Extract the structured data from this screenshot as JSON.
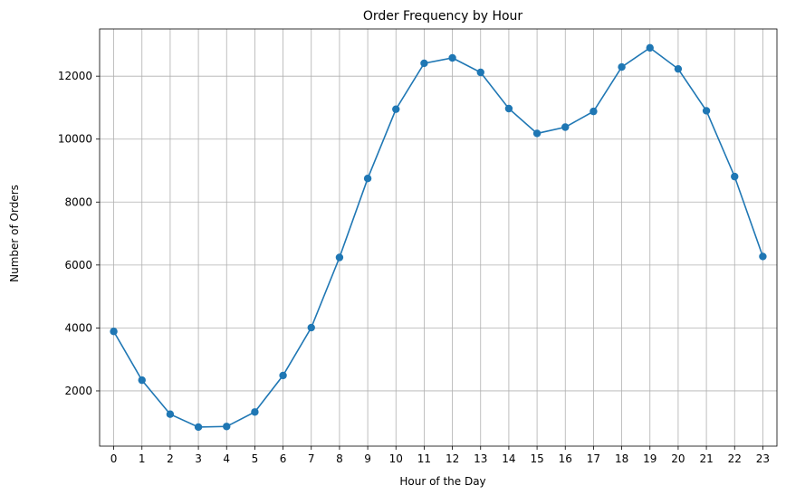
{
  "chart_data": {
    "type": "line",
    "title": "Order Frequency by Hour",
    "xlabel": "Hour of the Day",
    "ylabel": "Number of Orders",
    "x": [
      0,
      1,
      2,
      3,
      4,
      5,
      6,
      7,
      8,
      9,
      10,
      11,
      12,
      13,
      14,
      15,
      16,
      17,
      18,
      19,
      20,
      21,
      22,
      23
    ],
    "x_tick_labels": [
      "0",
      "1",
      "2",
      "3",
      "4",
      "5",
      "6",
      "7",
      "8",
      "9",
      "10",
      "11",
      "12",
      "13",
      "14",
      "15",
      "16",
      "17",
      "18",
      "19",
      "20",
      "21",
      "22",
      "23"
    ],
    "series": [
      {
        "values": [
          3890,
          2340,
          1260,
          850,
          870,
          1330,
          2490,
          4010,
          6240,
          8750,
          10950,
          12410,
          12580,
          12120,
          10970,
          10180,
          10380,
          10880,
          12290,
          12900,
          12230,
          10900,
          8810,
          6270
        ],
        "color": "#1f77b4",
        "marker": "circle"
      }
    ],
    "xlim": [
      -0.5,
      23.5
    ],
    "ylim": [
      245,
      13500
    ],
    "y_ticks": [
      2000,
      4000,
      6000,
      8000,
      10000,
      12000
    ],
    "y_tick_labels": [
      "2000",
      "4000",
      "6000",
      "8000",
      "10000",
      "12000"
    ],
    "grid": true,
    "legend": "none"
  }
}
